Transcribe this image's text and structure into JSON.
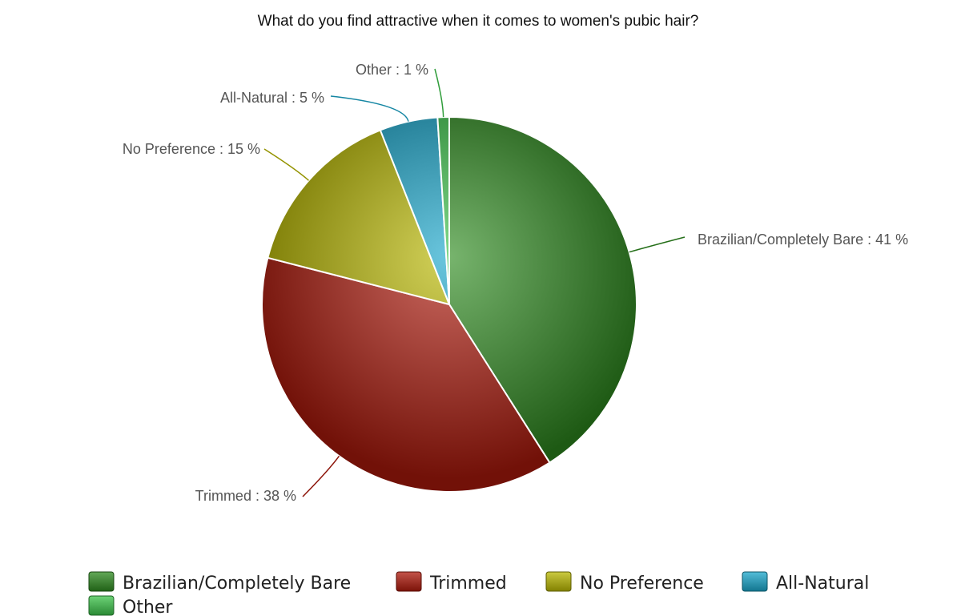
{
  "chart_data": {
    "type": "pie",
    "title": "What do you find attractive when it comes to women's pubic hair?",
    "unit": "%",
    "slices": [
      {
        "label": "Brazilian/Completely Bare",
        "value": 41,
        "display": "Brazilian/Completely Bare : 41 %",
        "color": "#2e8b1f"
      },
      {
        "label": "Trimmed",
        "value": 38,
        "display": "Trimmed : 38 %",
        "color": "#b01a0c"
      },
      {
        "label": "No Preference",
        "value": 15,
        "display": "No Preference : 15 %",
        "color": "#b9b800"
      },
      {
        "label": "All-Natural",
        "value": 5,
        "display": "All-Natural : 5 %",
        "color": "#1aa7cc"
      },
      {
        "label": "Other",
        "value": 1,
        "display": "Other : 1 %",
        "color": "#3cc44a"
      }
    ],
    "legend": {
      "placement": "bottom",
      "items": [
        "Brazilian/Completely Bare",
        "Trimmed",
        "No Preference",
        "All-Natural",
        "Other"
      ]
    }
  }
}
